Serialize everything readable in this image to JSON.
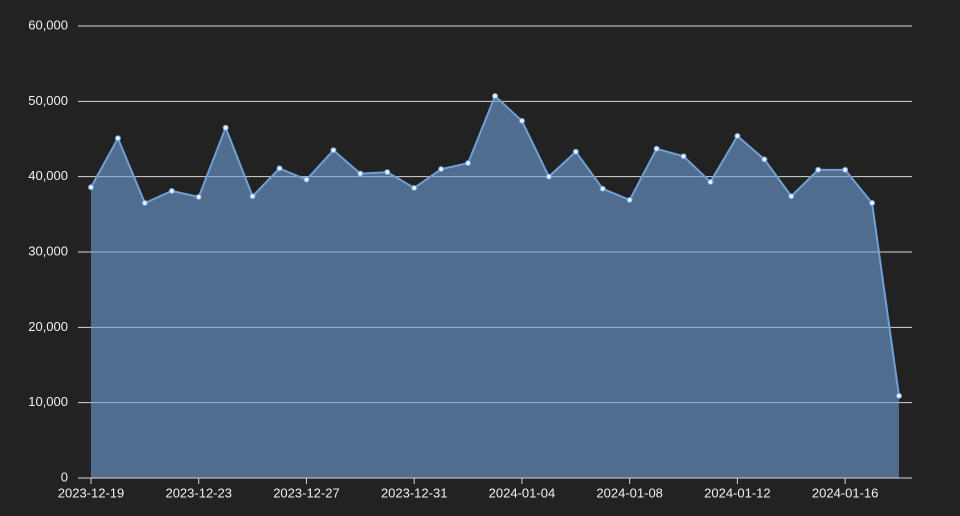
{
  "chart_data": {
    "type": "area",
    "x": [
      "2023-12-19",
      "2023-12-20",
      "2023-12-21",
      "2023-12-22",
      "2023-12-23",
      "2023-12-24",
      "2023-12-25",
      "2023-12-26",
      "2023-12-27",
      "2023-12-28",
      "2023-12-29",
      "2023-12-30",
      "2023-12-31",
      "2024-01-01",
      "2024-01-02",
      "2024-01-03",
      "2024-01-04",
      "2024-01-05",
      "2024-01-06",
      "2024-01-07",
      "2024-01-08",
      "2024-01-09",
      "2024-01-10",
      "2024-01-11",
      "2024-01-12",
      "2024-01-13",
      "2024-01-14",
      "2024-01-15",
      "2024-01-16",
      "2024-01-17",
      "2024-01-18"
    ],
    "series": [
      {
        "color": "#6fa0d8",
        "values": [
          38600,
          45100,
          36500,
          38100,
          37300,
          46500,
          37400,
          41100,
          39600,
          43500,
          40400,
          40600,
          38500,
          41000,
          41800,
          50700,
          47400,
          40000,
          43300,
          38400,
          36900,
          43700,
          42700,
          39300,
          45400,
          42300,
          37400,
          40900,
          40900,
          36500,
          10900
        ]
      }
    ],
    "xticks": [
      "2023-12-19",
      "2023-12-23",
      "2023-12-27",
      "2023-12-31",
      "2024-01-04",
      "2024-01-08",
      "2024-01-12",
      "2024-01-16"
    ],
    "ylim": [
      0,
      60000
    ],
    "yticks": [
      0,
      {
        "value": 10000,
        "label": "10,000"
      },
      {
        "value": 20000,
        "label": "20,000"
      },
      {
        "value": 30000,
        "label": "30,000"
      },
      {
        "value": 40000,
        "label": "40,000"
      },
      {
        "value": 50000,
        "label": "50,000"
      },
      {
        "value": 60000,
        "label": "60,000"
      }
    ],
    "grid": true
  }
}
